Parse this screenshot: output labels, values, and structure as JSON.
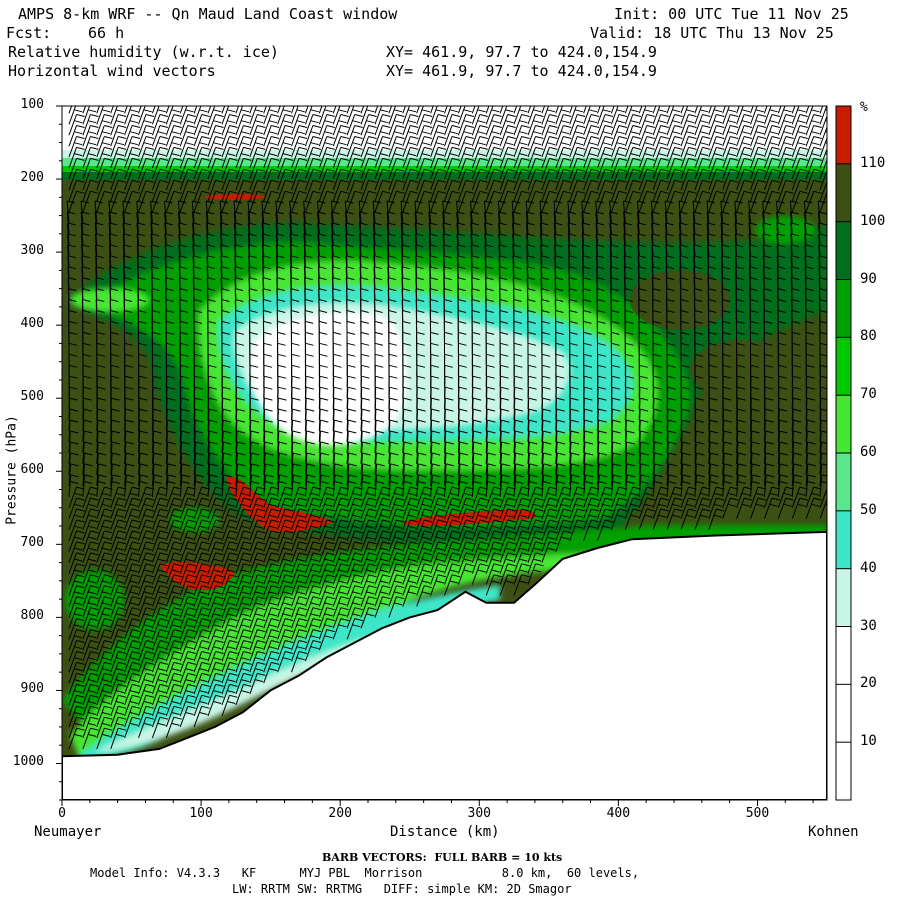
{
  "header": {
    "title": "AMPS 8-km WRF -- Qn Maud Land Coast window",
    "init": "Init: 00 UTC Tue 11 Nov 25",
    "fcst_label": "Fcst:",
    "fcst_value": "66 h",
    "valid": "Valid: 18 UTC Thu 13 Nov 25",
    "field1": "Relative humidity (w.r.t. ice)",
    "field1_xy": "XY= 461.9, 97.7 to 424.0,154.9",
    "field2": "Horizontal wind vectors",
    "field2_xy": "XY= 461.9, 97.7 to 424.0,154.9"
  },
  "chart_data": {
    "type": "heatmap",
    "title": "Relative humidity (w.r.t. ice) cross section with horizontal wind barbs",
    "xlabel": "Distance (km)",
    "ylabel": "Pressure (hPa)",
    "xlim": [
      0,
      550
    ],
    "ylim": [
      1050,
      100
    ],
    "x_ticks": [
      0,
      100,
      200,
      300,
      400,
      500
    ],
    "y_ticks": [
      100,
      200,
      300,
      400,
      500,
      600,
      700,
      800,
      900,
      1000
    ],
    "left_endpoint": "Neumayer",
    "right_endpoint": "Kohnen",
    "colorbar": {
      "unit": "%",
      "levels": [
        10,
        20,
        30,
        40,
        50,
        60,
        70,
        80,
        90,
        100,
        110
      ],
      "colors": [
        "#ffffff",
        "#ffffff",
        "#ffffff",
        "#c8f5e6",
        "#3ce6c8",
        "#5ae68c",
        "#46e632",
        "#00c800",
        "#00a000",
        "#006e1e",
        "#3c5014",
        "#c81e00"
      ]
    },
    "terrain_profile": [
      {
        "x": 0,
        "p": 990
      },
      {
        "x": 40,
        "p": 988
      },
      {
        "x": 70,
        "p": 980
      },
      {
        "x": 90,
        "p": 965
      },
      {
        "x": 110,
        "p": 950
      },
      {
        "x": 130,
        "p": 930
      },
      {
        "x": 150,
        "p": 900
      },
      {
        "x": 170,
        "p": 880
      },
      {
        "x": 190,
        "p": 855
      },
      {
        "x": 210,
        "p": 835
      },
      {
        "x": 230,
        "p": 815
      },
      {
        "x": 250,
        "p": 800
      },
      {
        "x": 270,
        "p": 790
      },
      {
        "x": 290,
        "p": 765
      },
      {
        "x": 305,
        "p": 780
      },
      {
        "x": 325,
        "p": 780
      },
      {
        "x": 340,
        "p": 755
      },
      {
        "x": 360,
        "p": 720
      },
      {
        "x": 385,
        "p": 705
      },
      {
        "x": 410,
        "p": 693
      },
      {
        "x": 470,
        "p": 688
      },
      {
        "x": 550,
        "p": 683
      }
    ],
    "dry_core_regions": [
      {
        "name": "core",
        "x_center": 180,
        "p_center": 460,
        "rh": 20
      },
      {
        "name": "upper-strato",
        "x_center": 275,
        "p_center": 130,
        "rh": 20
      }
    ],
    "saturated_patches_rh": 110,
    "barb_convention": "FULL BARB = 10 kts"
  },
  "footer": {
    "barb_note": "BARB VECTORS:  FULL BARB = 10 kts",
    "model_info": "Model Info: V4.3.3   KF      MYJ PBL  Morrison           8.0 km,  60 levels,",
    "model_info2": "LW: RRTM SW: RRTMG   DIFF: simple KM: 2D Smagor"
  }
}
